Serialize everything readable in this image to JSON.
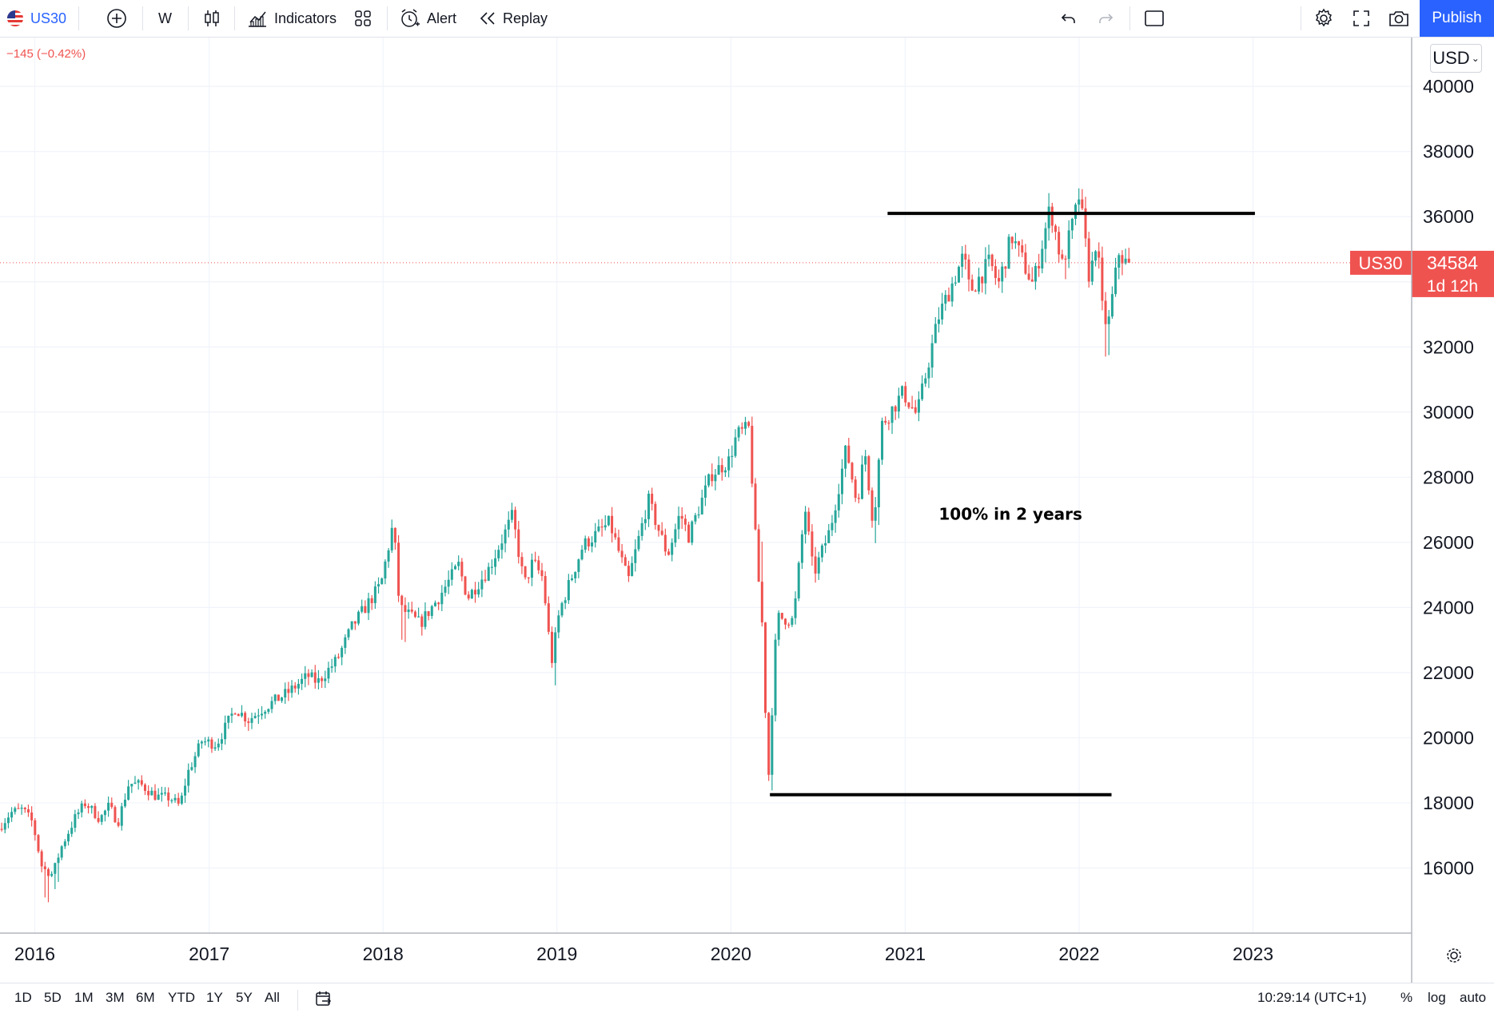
{
  "toolbar": {
    "symbol": "US30",
    "interval": "W",
    "indicators_label": "Indicators",
    "alert_label": "Alert",
    "replay_label": "Replay",
    "publish_label": "Publish",
    "icons": [
      "us-flag-icon",
      "add-symbol-icon",
      "candles-icon",
      "indicators-icon",
      "templates-icon",
      "alert-icon",
      "replay-icon",
      "undo-icon",
      "redo-icon",
      "fullscreen-rect-icon",
      "settings-icon",
      "fullscreen-icon",
      "camera-icon"
    ]
  },
  "header": {
    "change": "−145 (−0.42%)",
    "currency": "USD"
  },
  "price_tag": {
    "symbol": "US30",
    "price": "34584",
    "countdown": "1d 12h",
    "color": "#ef5350"
  },
  "bottom": {
    "ranges": [
      "1D",
      "5D",
      "1M",
      "3M",
      "6M",
      "YTD",
      "1Y",
      "5Y",
      "All"
    ],
    "time": "10:29:14 (UTC+1)",
    "percent": "%",
    "log": "log",
    "auto": "auto"
  },
  "chart_data": {
    "type": "candlestick",
    "symbol": "US30",
    "interval": "1W",
    "x_range": [
      "2015-10-20",
      "2023-11-30"
    ],
    "ylim": [
      14000,
      41500
    ],
    "y_ticks": [
      16000,
      18000,
      20000,
      22000,
      24000,
      26000,
      28000,
      30000,
      32000,
      34000,
      36000,
      38000,
      40000
    ],
    "y_tick_labels": [
      "16000",
      "18000",
      "20000",
      "22000",
      "24000",
      "26000",
      "28000",
      "30000",
      "32000",
      "",
      "36000",
      "38000",
      "40000"
    ],
    "x_tick_labels": [
      "2016",
      "2017",
      "2018",
      "2019",
      "2020",
      "2021",
      "2022",
      "2023"
    ],
    "grid": true,
    "up_color": "#26a69a",
    "down_color": "#ef5350",
    "last_price": 34584,
    "price_path": [
      [
        "2015-10-20",
        17200
      ],
      [
        "2015-11-15",
        17700
      ],
      [
        "2015-12-10",
        17800
      ],
      [
        "2015-12-31",
        17400
      ],
      [
        "2016-01-20",
        16000
      ],
      [
        "2016-02-11",
        15800
      ],
      [
        "2016-02-28",
        16600
      ],
      [
        "2016-03-31",
        17600
      ],
      [
        "2016-04-20",
        18000
      ],
      [
        "2016-05-20",
        17500
      ],
      [
        "2016-06-08",
        17900
      ],
      [
        "2016-06-27",
        17400
      ],
      [
        "2016-07-20",
        18600
      ],
      [
        "2016-08-15",
        18550
      ],
      [
        "2016-09-15",
        18200
      ],
      [
        "2016-10-15",
        18150
      ],
      [
        "2016-11-04",
        17900
      ],
      [
        "2016-11-20",
        18900
      ],
      [
        "2016-12-20",
        19900
      ],
      [
        "2017-01-20",
        19800
      ],
      [
        "2017-02-28",
        20900
      ],
      [
        "2017-03-28",
        20550
      ],
      [
        "2017-04-28",
        20900
      ],
      [
        "2017-06-20",
        21400
      ],
      [
        "2017-07-31",
        21900
      ],
      [
        "2017-08-20",
        21700
      ],
      [
        "2017-09-30",
        22400
      ],
      [
        "2017-10-31",
        23400
      ],
      [
        "2017-12-31",
        24700
      ],
      [
        "2018-01-26",
        26600
      ],
      [
        "2018-02-08",
        24000
      ],
      [
        "2018-03-23",
        23500
      ],
      [
        "2018-05-01",
        24300
      ],
      [
        "2018-06-12",
        25300
      ],
      [
        "2018-07-01",
        24300
      ],
      [
        "2018-08-15",
        25200
      ],
      [
        "2018-10-03",
        26800
      ],
      [
        "2018-10-28",
        24700
      ],
      [
        "2018-11-15",
        25400
      ],
      [
        "2018-12-06",
        24900
      ],
      [
        "2018-12-24",
        22300
      ],
      [
        "2019-01-10",
        23900
      ],
      [
        "2019-02-28",
        25900
      ],
      [
        "2019-04-25",
        26600
      ],
      [
        "2019-06-03",
        24800
      ],
      [
        "2019-07-15",
        27300
      ],
      [
        "2019-08-25",
        25600
      ],
      [
        "2019-09-20",
        26900
      ],
      [
        "2019-10-08",
        26200
      ],
      [
        "2019-11-25",
        28100
      ],
      [
        "2019-12-31",
        28500
      ],
      [
        "2020-01-17",
        29300
      ],
      [
        "2020-02-12",
        29500
      ],
      [
        "2020-02-28",
        25400
      ],
      [
        "2020-03-09",
        23900
      ],
      [
        "2020-03-23",
        18600
      ],
      [
        "2020-04-10",
        23700
      ],
      [
        "2020-05-15",
        23600
      ],
      [
        "2020-06-08",
        27100
      ],
      [
        "2020-06-26",
        25000
      ],
      [
        "2020-07-31",
        26400
      ],
      [
        "2020-09-03",
        28900
      ],
      [
        "2020-09-25",
        27200
      ],
      [
        "2020-10-12",
        28800
      ],
      [
        "2020-10-30",
        26500
      ],
      [
        "2020-11-16",
        29600
      ],
      [
        "2020-12-31",
        30600
      ],
      [
        "2021-01-29",
        29900
      ],
      [
        "2021-03-15",
        32900
      ],
      [
        "2021-05-07",
        34800
      ],
      [
        "2021-05-20",
        33700
      ],
      [
        "2021-07-01",
        34600
      ],
      [
        "2021-07-19",
        33900
      ],
      [
        "2021-08-16",
        35400
      ],
      [
        "2021-09-30",
        33900
      ],
      [
        "2021-11-05",
        36300
      ],
      [
        "2021-11-30",
        34500
      ],
      [
        "2021-12-31",
        36300
      ],
      [
        "2022-01-05",
        36700
      ],
      [
        "2022-01-27",
        34000
      ],
      [
        "2022-02-10",
        35400
      ],
      [
        "2022-02-24",
        32800
      ],
      [
        "2022-03-08",
        32800
      ],
      [
        "2022-03-29",
        34900
      ],
      [
        "2022-04-12",
        34584
      ]
    ],
    "spikes": [
      [
        "2016-01-22",
        -700
      ],
      [
        "2016-02-12",
        -400
      ],
      [
        "2018-02-09",
        -800
      ],
      [
        "2018-12-24",
        -600
      ],
      [
        "2020-03-23",
        -300
      ],
      [
        "2020-03-02",
        1000
      ],
      [
        "2020-10-30",
        -400
      ],
      [
        "2021-11-30",
        -600
      ],
      [
        "2022-01-05",
        300
      ],
      [
        "2022-02-24",
        -700
      ]
    ],
    "annotations": [
      {
        "type": "hline",
        "y": 36100,
        "x_from": "2020-11-25",
        "x_to": "2023-01-05"
      },
      {
        "type": "hline",
        "y": 18250,
        "x_from": "2020-03-23",
        "x_to": "2022-03-10"
      },
      {
        "type": "text",
        "text": "100% in 2 years",
        "x": "2021-08-10",
        "y": 26700
      }
    ]
  }
}
